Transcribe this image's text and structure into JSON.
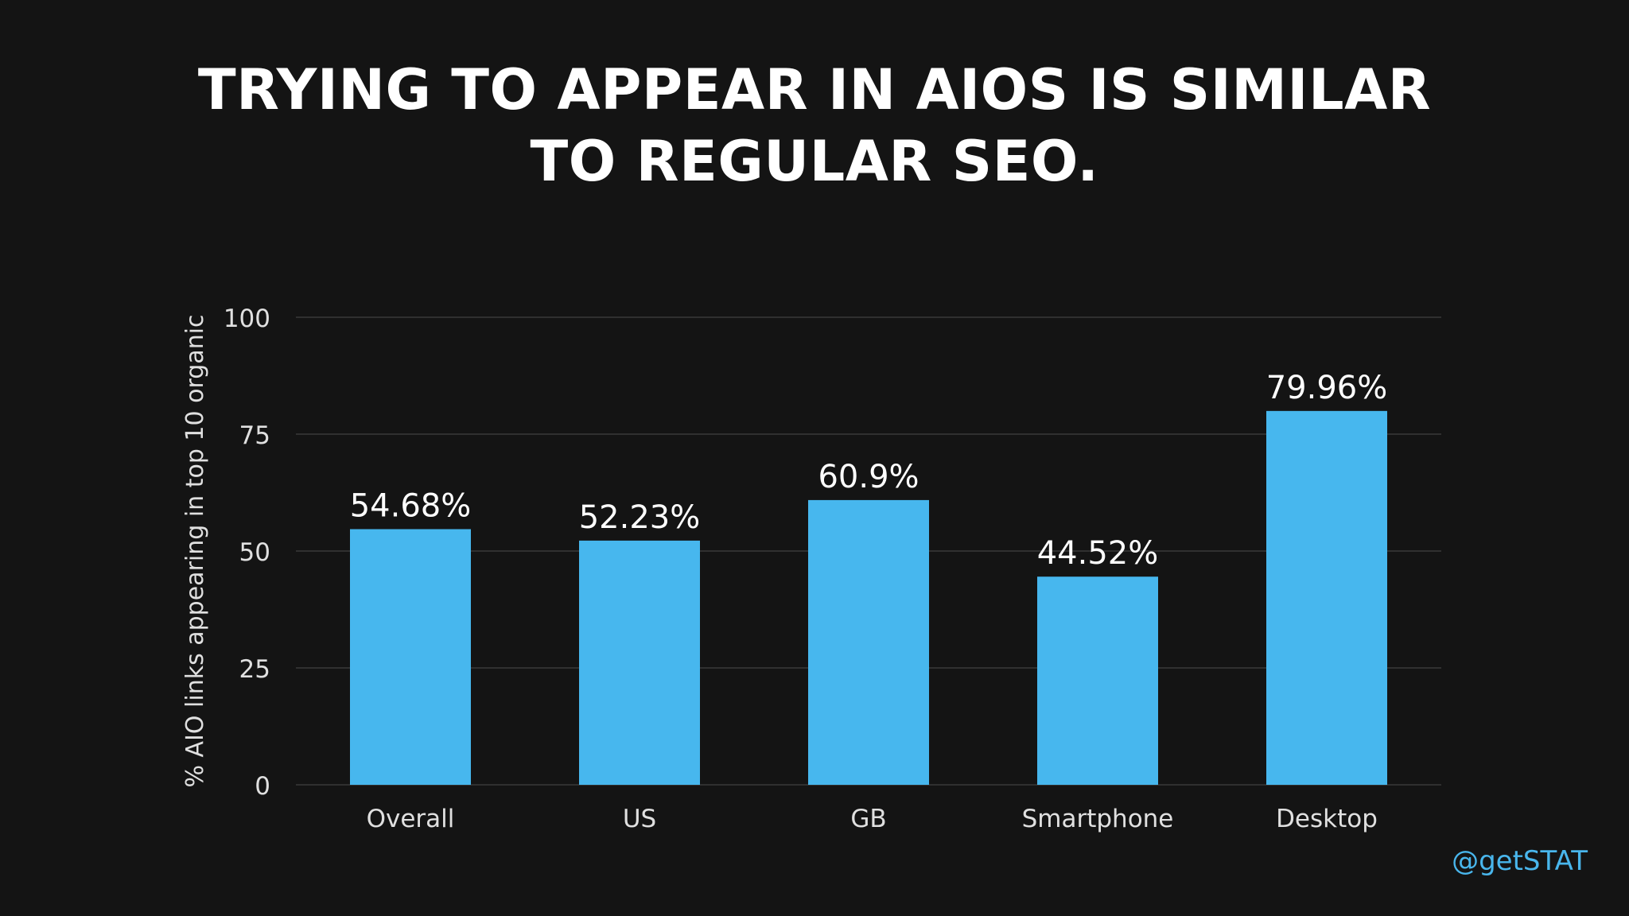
{
  "slide": {
    "title_line1": "TRYING TO APPEAR IN AIOS IS SIMILAR",
    "title_line2": "TO REGULAR SEO.",
    "handle": "@getSTAT"
  },
  "colors": {
    "background": "#141414",
    "bar": "#47b7ee",
    "text": "#ffffff",
    "axis_text": "#e0e0e0",
    "gridline": "#3a3a3a",
    "handle": "#49b6ec"
  },
  "chart_data": {
    "type": "bar",
    "categories": [
      "Overall",
      "US",
      "GB",
      "Smartphone",
      "Desktop"
    ],
    "values": [
      54.68,
      52.23,
      60.9,
      44.52,
      79.96
    ],
    "data_labels": [
      "54.68%",
      "52.23%",
      "60.9%",
      "44.52%",
      "79.96%"
    ],
    "yticks": [
      0,
      25,
      50,
      75,
      100
    ],
    "ylim": [
      0,
      100
    ],
    "ylabel": "% AIO links appearing in top 10 organic",
    "xlabel": "",
    "grid": true,
    "legend": "none"
  }
}
